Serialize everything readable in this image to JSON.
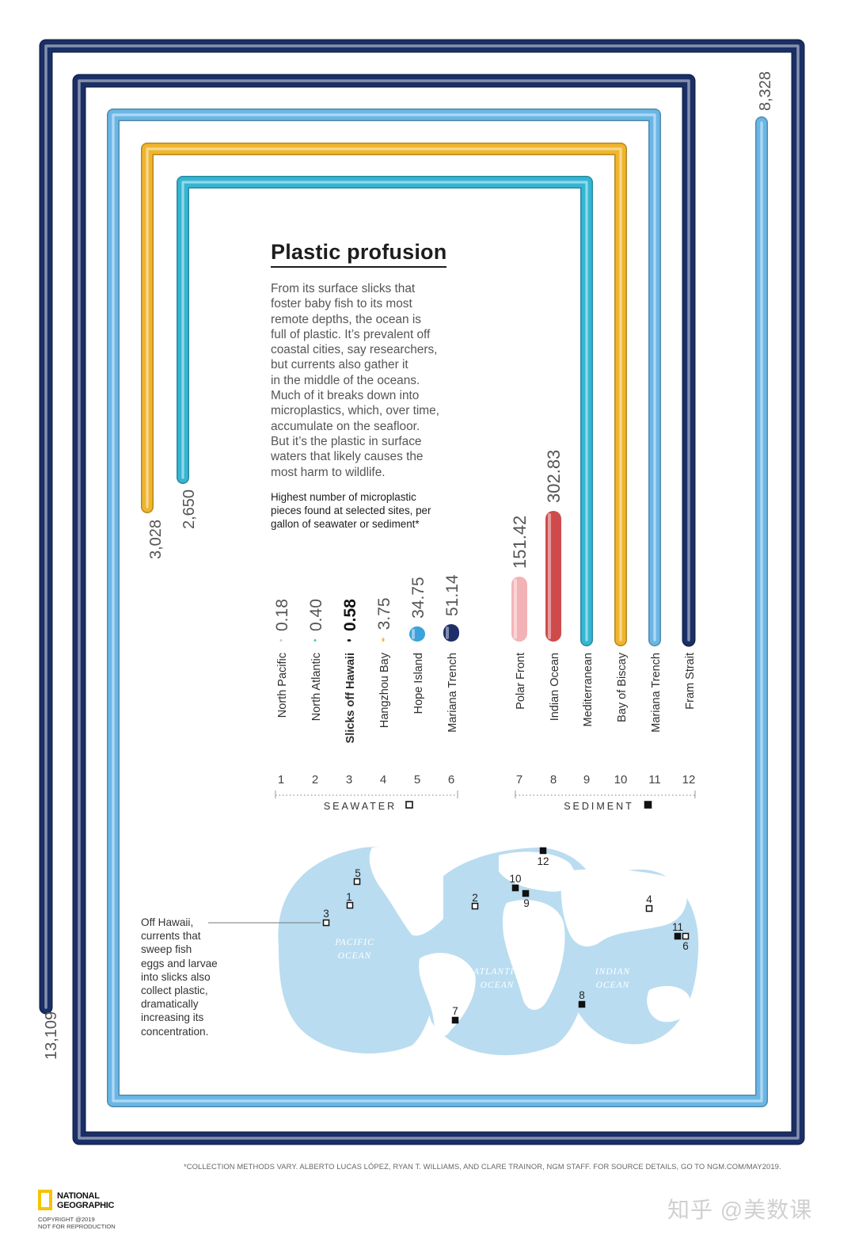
{
  "title": "Plastic profusion",
  "intro_lines": [
    "From its surface slicks that",
    "foster baby fish to its most",
    "remote depths, the ocean is",
    "full of plastic. It’s prevalent off",
    "coastal cities, say researchers,",
    "but currents also gather it",
    "in the middle of the oceans.",
    "Much of it breaks down into",
    "microplastics, which, over time,",
    "accumulate on the seafloor.",
    "But it’s the plastic in surface",
    "waters that likely causes the",
    "most harm to wildlife."
  ],
  "subhead_lines": [
    "Highest number of microplastic",
    "pieces found at selected sites, per",
    "gallon of seawater or sediment*"
  ],
  "chart_data": {
    "type": "bar",
    "title": "Plastic profusion",
    "ylabel": "Highest number of microplastic pieces found at selected sites, per gallon of seawater or sediment*",
    "groups": [
      {
        "name": "SEAWATER",
        "symbol": "open-square",
        "indices": [
          1,
          2,
          3,
          4,
          5,
          6
        ]
      },
      {
        "name": "SEDIMENT",
        "symbol": "filled-square",
        "indices": [
          7,
          8,
          9,
          10,
          11,
          12
        ]
      }
    ],
    "sites": [
      {
        "index": 1,
        "name": "North Pacific",
        "value": 0.18,
        "label": "0.18",
        "color": "#c2cdd3",
        "group": "SEAWATER"
      },
      {
        "index": 2,
        "name": "North Atlantic",
        "value": 0.4,
        "label": "0.40",
        "color": "#4fc4bd",
        "group": "SEAWATER"
      },
      {
        "index": 3,
        "name": "Slicks off Hawaii",
        "value": 0.58,
        "label": "0.58",
        "color": "#151a22",
        "group": "SEAWATER",
        "highlight": true
      },
      {
        "index": 4,
        "name": "Hangzhou Bay",
        "value": 3.75,
        "label": "3.75",
        "color": "#f0bd3c",
        "group": "SEAWATER"
      },
      {
        "index": 5,
        "name": "Hope Island",
        "value": 34.75,
        "label": "34.75",
        "color": "#3da2dc",
        "group": "SEAWATER"
      },
      {
        "index": 6,
        "name": "Mariana Trench",
        "value": 51.14,
        "label": "51.14",
        "color": "#1d2f6a",
        "group": "SEAWATER"
      },
      {
        "index": 7,
        "name": "Polar Front",
        "value": 151.42,
        "label": "151.42",
        "color": "#f3b3b6",
        "group": "SEDIMENT"
      },
      {
        "index": 8,
        "name": "Indian Ocean",
        "value": 302.83,
        "label": "302.83",
        "color": "#cf4b4b",
        "group": "SEDIMENT"
      },
      {
        "index": 9,
        "name": "Mediterranean",
        "value": 2650,
        "label": "2,650",
        "color": "#35b6d3",
        "group": "SEDIMENT"
      },
      {
        "index": 10,
        "name": "Bay of Biscay",
        "value": 3028,
        "label": "3,028",
        "color": "#f0b52d",
        "group": "SEDIMENT"
      },
      {
        "index": 11,
        "name": "Mariana Trench",
        "value": 8328,
        "label": "8,328",
        "color": "#6ab7e6",
        "group": "SEDIMENT"
      },
      {
        "index": 12,
        "name": "Fram Strait",
        "value": 13109,
        "label": "13,109",
        "color": "#1a2f66",
        "group": "SEDIMENT"
      }
    ]
  },
  "map": {
    "ocean_labels": [
      {
        "id": "pacific",
        "line1": "PACIFIC",
        "line2": "OCEAN"
      },
      {
        "id": "atlantic",
        "line1": "ATLANTIC",
        "line2": "OCEAN"
      },
      {
        "id": "indian",
        "line1": "INDIAN",
        "line2": "OCEAN"
      }
    ],
    "markers": [
      {
        "n": "1",
        "type": "seawater"
      },
      {
        "n": "2",
        "type": "seawater"
      },
      {
        "n": "3",
        "type": "seawater"
      },
      {
        "n": "4",
        "type": "seawater"
      },
      {
        "n": "5",
        "type": "seawater"
      },
      {
        "n": "6",
        "type": "seawater"
      },
      {
        "n": "7",
        "type": "sediment"
      },
      {
        "n": "8",
        "type": "sediment"
      },
      {
        "n": "9",
        "type": "sediment"
      },
      {
        "n": "10",
        "type": "sediment"
      },
      {
        "n": "11",
        "type": "sediment"
      },
      {
        "n": "12",
        "type": "sediment"
      }
    ],
    "colors": {
      "ocean": "#b9dcf0",
      "land": "#ffffff"
    }
  },
  "annotation_lines": [
    "Off Hawaii,",
    "currents that",
    "sweep fish",
    "eggs and larvae",
    "into slicks also",
    "collect plastic,",
    "dramatically",
    "increasing its",
    "concentration."
  ],
  "footnote": "*COLLECTION METHODS VARY. ALBERTO LUCAS LÓPEZ, RYAN T. WILLIAMS, AND CLARE TRAINOR, NGM STAFF. FOR SOURCE DETAILS, GO TO NGM.COM/MAY2019.",
  "logo": {
    "line1": "NATIONAL",
    "line2": "GEOGRAPHIC",
    "copyright1": "COPYRIGHT @2019",
    "copyright2": "NOT FOR REPRODUCTION",
    "color": "#f5c400"
  },
  "watermark": "知乎 @美数课"
}
